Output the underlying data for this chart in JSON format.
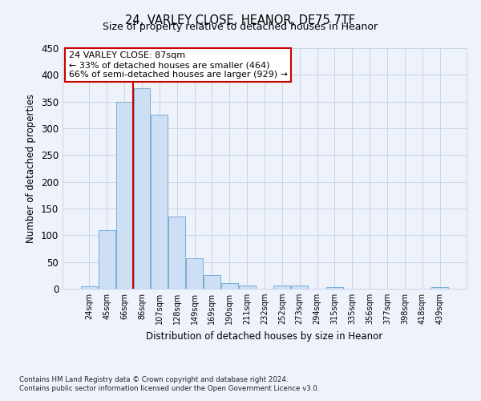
{
  "title": "24, VARLEY CLOSE, HEANOR, DE75 7TF",
  "subtitle": "Size of property relative to detached houses in Heanor",
  "xlabel": "Distribution of detached houses by size in Heanor",
  "ylabel": "Number of detached properties",
  "bar_labels": [
    "24sqm",
    "45sqm",
    "66sqm",
    "86sqm",
    "107sqm",
    "128sqm",
    "149sqm",
    "169sqm",
    "190sqm",
    "211sqm",
    "232sqm",
    "252sqm",
    "273sqm",
    "294sqm",
    "315sqm",
    "335sqm",
    "356sqm",
    "377sqm",
    "398sqm",
    "418sqm",
    "439sqm"
  ],
  "bar_values": [
    5,
    110,
    350,
    375,
    325,
    135,
    57,
    25,
    11,
    6,
    0,
    6,
    6,
    0,
    3,
    0,
    0,
    0,
    0,
    0,
    3
  ],
  "bar_color": "#ccdff5",
  "bar_edge_color": "#7aadd4",
  "vline_color": "#cc0000",
  "vline_x_index": 3,
  "annotation_title": "24 VARLEY CLOSE: 87sqm",
  "annotation_line1": "← 33% of detached houses are smaller (464)",
  "annotation_line2": "66% of semi-detached houses are larger (929) →",
  "annotation_box_color": "#ffffff",
  "annotation_box_edge": "#cc0000",
  "ylim": [
    0,
    450
  ],
  "yticks": [
    0,
    50,
    100,
    150,
    200,
    250,
    300,
    350,
    400,
    450
  ],
  "footnote1": "Contains HM Land Registry data © Crown copyright and database right 2024.",
  "footnote2": "Contains public sector information licensed under the Open Government Licence v3.0.",
  "bg_color": "#eef2fb",
  "grid_color": "#c8d4e8"
}
